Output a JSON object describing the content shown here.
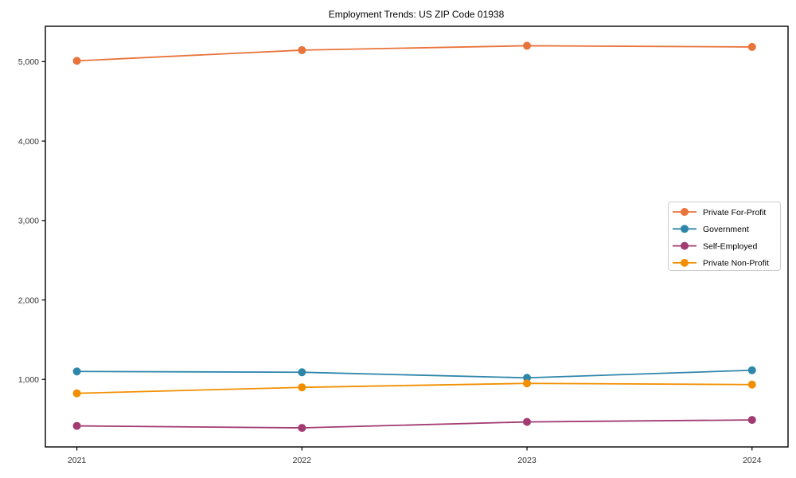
{
  "figure": {
    "title": "Employment Trends: US ZIP Code 01938"
  },
  "chart_data": {
    "type": "line",
    "title": "Employment Trends: US ZIP Code 01938",
    "xlabel": "",
    "ylabel": "",
    "x": [
      2021,
      2022,
      2023,
      2024
    ],
    "xtick_labels": [
      "2021",
      "2022",
      "2023",
      "2024"
    ],
    "yticks": [
      1000,
      2000,
      3000,
      4000,
      5000
    ],
    "ytick_labels": [
      "1,000",
      "2,000",
      "3,000",
      "4,000",
      "5,000"
    ],
    "xlim": [
      2020.86,
      2024.16
    ],
    "ylim": [
      150,
      5445
    ],
    "grid": false,
    "marker": "circle",
    "legend": {
      "position": "center-right",
      "background": "#ffffff",
      "border_color": "#cccccc",
      "entries": [
        "Private For-Profit",
        "Government",
        "Self-Employed",
        "Private Non-Profit"
      ]
    },
    "series": [
      {
        "name": "Private For-Profit",
        "color": "#E8743B",
        "values": [
          5010,
          5145,
          5200,
          5185
        ]
      },
      {
        "name": "Government",
        "color": "#2E86AB",
        "values": [
          1100,
          1090,
          1020,
          1115
        ]
      },
      {
        "name": "Self-Employed",
        "color": "#A23B72",
        "values": [
          415,
          390,
          465,
          490
        ]
      },
      {
        "name": "Private Non-Profit",
        "color": "#F18F01",
        "values": [
          825,
          900,
          950,
          935
        ]
      }
    ],
    "axes": {
      "spine_color": "#000000",
      "tick_color": "#000000",
      "tick_label_color": "#333333",
      "title_color": "#000000"
    }
  }
}
